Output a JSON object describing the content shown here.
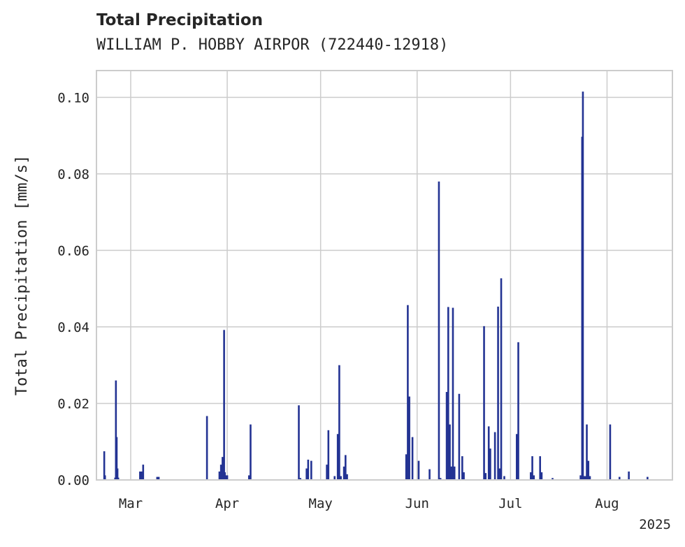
{
  "chart_data": {
    "type": "bar",
    "title": "Total Precipitation",
    "subtitle": "WILLIAM P. HOBBY AIRPOR (722440-12918)",
    "ylabel": "Total Precipitation [mm/s]",
    "xlabel": "",
    "year_label": "2025",
    "ylim": [
      0,
      0.107
    ],
    "xlim": [
      "2025-02-18",
      "2025-08-22"
    ],
    "grid": true,
    "bar_color": "#233393",
    "x_ticks": [
      {
        "date": "2025-03-01",
        "label": "Mar"
      },
      {
        "date": "2025-04-01",
        "label": "Apr"
      },
      {
        "date": "2025-05-01",
        "label": "May"
      },
      {
        "date": "2025-06-01",
        "label": "Jun"
      },
      {
        "date": "2025-07-01",
        "label": "Jul"
      },
      {
        "date": "2025-08-01",
        "label": "Aug"
      }
    ],
    "y_ticks": [
      {
        "value": 0.0,
        "label": "0.00"
      },
      {
        "value": 0.02,
        "label": "0.02"
      },
      {
        "value": 0.04,
        "label": "0.04"
      },
      {
        "value": 0.06,
        "label": "0.06"
      },
      {
        "value": 0.08,
        "label": "0.08"
      },
      {
        "value": 0.1,
        "label": "0.10"
      }
    ],
    "x": [
      "2025-02-20T12:00",
      "2025-02-20T18:00",
      "2025-02-24T00:00",
      "2025-02-24T06:00",
      "2025-02-24T12:00",
      "2025-02-24T18:00",
      "2025-02-25T00:00",
      "2025-03-04T00:00",
      "2025-03-04T12:00",
      "2025-03-05T00:00",
      "2025-03-09T12:00",
      "2025-03-10T00:00",
      "2025-03-25T12:00",
      "2025-03-29T12:00",
      "2025-03-30T00:00",
      "2025-03-30T12:00",
      "2025-03-31T00:00",
      "2025-03-31T06:00",
      "2025-03-31T12:00",
      "2025-04-01T00:00",
      "2025-04-08T00:00",
      "2025-04-08T12:00",
      "2025-04-24T00:00",
      "2025-04-24T12:00",
      "2025-04-26T12:00",
      "2025-04-27T00:00",
      "2025-04-28T00:00",
      "2025-05-03T00:00",
      "2025-05-03T12:00",
      "2025-05-05T12:00",
      "2025-05-06T12:00",
      "2025-05-07T00:00",
      "2025-05-07T12:00",
      "2025-05-08T12:00",
      "2025-05-09T00:00",
      "2025-05-09T12:00",
      "2025-05-28T12:00",
      "2025-05-29T00:00",
      "2025-05-29T12:00",
      "2025-05-30T12:00",
      "2025-06-01T12:00",
      "2025-06-05T00:00",
      "2025-06-08T00:00",
      "2025-06-08T12:00",
      "2025-06-10T12:00",
      "2025-06-11T00:00",
      "2025-06-11T12:00",
      "2025-06-12T00:00",
      "2025-06-12T12:00",
      "2025-06-13T00:00",
      "2025-06-14T12:00",
      "2025-06-15T12:00",
      "2025-06-16T00:00",
      "2025-06-22T12:00",
      "2025-06-23T00:00",
      "2025-06-24T00:00",
      "2025-06-24T12:00",
      "2025-06-26T00:00",
      "2025-06-27T00:00",
      "2025-06-27T12:00",
      "2025-06-28T00:00",
      "2025-06-29T00:00",
      "2025-07-03T00:00",
      "2025-07-03T12:00",
      "2025-07-07T12:00",
      "2025-07-08T00:00",
      "2025-07-08T12:00",
      "2025-07-10T12:00",
      "2025-07-11T00:00",
      "2025-07-14T12:00",
      "2025-07-23T12:00",
      "2025-07-24T00:00",
      "2025-07-24T06:00",
      "2025-07-24T12:00",
      "2025-07-25T00:00",
      "2025-07-25T12:00",
      "2025-07-26T00:00",
      "2025-07-26T12:00",
      "2025-08-02T00:00",
      "2025-08-05T00:00",
      "2025-08-08T00:00",
      "2025-08-14T00:00"
    ],
    "values": [
      0.0075,
      0.0012,
      0.0006,
      0.026,
      0.0112,
      0.003,
      0.0006,
      0.0022,
      0.0022,
      0.004,
      0.0008,
      0.0008,
      0.0167,
      0.0022,
      0.004,
      0.006,
      0.0392,
      0.002,
      0.0012,
      0.0012,
      0.0012,
      0.0145,
      0.0195,
      0.0005,
      0.003,
      0.0053,
      0.005,
      0.004,
      0.013,
      0.001,
      0.012,
      0.03,
      0.001,
      0.0035,
      0.0065,
      0.0015,
      0.0067,
      0.0457,
      0.0218,
      0.0112,
      0.005,
      0.0028,
      0.078,
      0.0005,
      0.023,
      0.0452,
      0.0145,
      0.0035,
      0.045,
      0.0035,
      0.0225,
      0.0062,
      0.002,
      0.0402,
      0.0018,
      0.014,
      0.0082,
      0.0125,
      0.0453,
      0.003,
      0.0527,
      0.001,
      0.012,
      0.036,
      0.002,
      0.0062,
      0.0012,
      0.0062,
      0.002,
      0.0005,
      0.0012,
      0.0897,
      0.1015,
      0.001,
      0.001,
      0.0145,
      0.005,
      0.001,
      0.0145,
      0.0008,
      0.0022,
      0.0008
    ]
  }
}
